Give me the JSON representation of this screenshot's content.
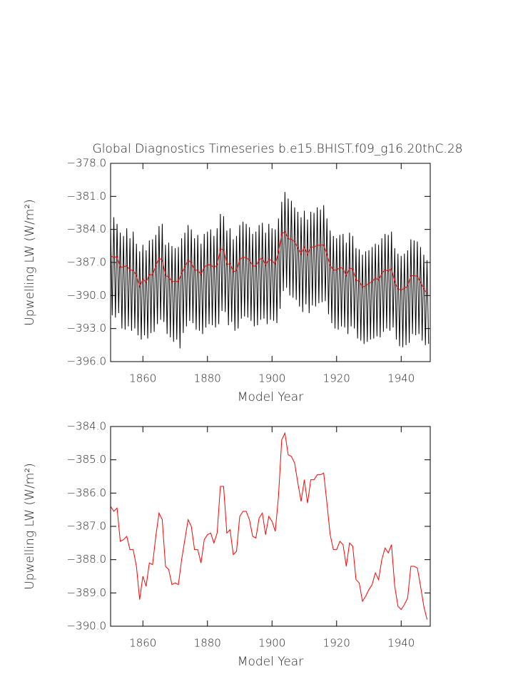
{
  "chart_data": [
    {
      "type": "line",
      "title": "Global Diagnostics Timeseries b.e15.BHIST.f09_g16.20thC.28",
      "x_label": "Model Year",
      "y_label": "Upwelling LW (W/m²)",
      "xlim": [
        1850,
        1949
      ],
      "xticks": [
        1860,
        1880,
        1900,
        1920,
        1940
      ],
      "ylim": [
        -396,
        -378
      ],
      "yticks": [
        {
          "value": -378,
          "label": "−378.0"
        },
        {
          "value": -381,
          "label": "−381.0"
        },
        {
          "value": -384,
          "label": "−384.0"
        },
        {
          "value": -387,
          "label": "−387.0"
        },
        {
          "value": -390,
          "label": "−390.0"
        },
        {
          "value": -393,
          "label": "−393.0"
        },
        {
          "value": -396,
          "label": "−396.0"
        }
      ],
      "series": [
        {
          "color": "#000000",
          "x": [
            1850,
            1850.5,
            1851,
            1851.5,
            1852,
            1852.5,
            1853,
            1853.5,
            1854,
            1854.5,
            1855,
            1855.5,
            1856,
            1856.5,
            1857,
            1857.5,
            1858,
            1858.5,
            1859,
            1859.5,
            1860,
            1860.5,
            1861,
            1861.5,
            1862,
            1862.5,
            1863,
            1863.5,
            1864,
            1864.5,
            1865,
            1865.5,
            1866,
            1866.5,
            1867,
            1867.5,
            1868,
            1868.5,
            1869,
            1869.5,
            1870,
            1870.5,
            1871,
            1871.5,
            1872,
            1872.5,
            1873,
            1873.5,
            1874,
            1874.5,
            1875,
            1875.5,
            1876,
            1876.5,
            1877,
            1877.5,
            1878,
            1878.5,
            1879,
            1879.5,
            1880,
            1880.5,
            1881,
            1881.5,
            1882,
            1882.5,
            1883,
            1883.5,
            1884,
            1884.5,
            1885,
            1885.5,
            1886,
            1886.5,
            1887,
            1887.5,
            1888,
            1888.5,
            1889,
            1889.5,
            1890,
            1890.5,
            1891,
            1891.5,
            1892,
            1892.5,
            1893,
            1893.5,
            1894,
            1894.5,
            1895,
            1895.5,
            1896,
            1896.5,
            1897,
            1897.5,
            1898,
            1898.5,
            1899,
            1899.5,
            1900,
            1900.5,
            1901,
            1901.5,
            1902,
            1902.5,
            1903,
            1903.5,
            1904,
            1904.5,
            1905,
            1905.5,
            1906,
            1906.5,
            1907,
            1907.5,
            1908,
            1908.5,
            1909,
            1909.5,
            1910,
            1910.5,
            1911,
            1911.5,
            1912,
            1912.5,
            1913,
            1913.5,
            1914,
            1914.5,
            1915,
            1915.5,
            1916,
            1916.5,
            1917,
            1917.5,
            1918,
            1918.5,
            1919,
            1919.5,
            1920,
            1920.5,
            1921,
            1921.5,
            1922,
            1922.5,
            1923,
            1923.5,
            1924,
            1924.5,
            1925,
            1925.5,
            1926,
            1926.5,
            1927,
            1927.5,
            1928,
            1928.5,
            1929,
            1929.5,
            1930,
            1930.5,
            1931,
            1931.5,
            1932,
            1932.5,
            1933,
            1933.5,
            1934,
            1934.5,
            1935,
            1935.5,
            1936,
            1936.5,
            1937,
            1937.5,
            1938,
            1938.5,
            1939,
            1939.5,
            1940,
            1940.5,
            1941,
            1941.5,
            1942,
            1942.5,
            1943,
            1943.5,
            1944,
            1944.5,
            1945,
            1945.5,
            1946,
            1946.5,
            1947,
            1947.5,
            1948,
            1948.5
          ],
          "values": [
            -383.6,
            -391.8,
            -382.9,
            -392.0,
            -383.5,
            -391.6,
            -384.3,
            -393.0,
            -384.6,
            -393.1,
            -383.9,
            -392.8,
            -384.8,
            -393.2,
            -384.2,
            -393.0,
            -385.3,
            -393.6,
            -386.0,
            -394.0,
            -385.4,
            -393.6,
            -385.9,
            -393.9,
            -385.0,
            -393.4,
            -384.9,
            -393.3,
            -384.5,
            -392.6,
            -383.7,
            -392.2,
            -383.5,
            -392.4,
            -385.4,
            -393.5,
            -385.2,
            -393.8,
            -385.5,
            -394.2,
            -385.7,
            -394.0,
            -385.6,
            -394.8,
            -384.8,
            -393.4,
            -384.3,
            -392.8,
            -383.6,
            -392.3,
            -384.0,
            -392.5,
            -384.8,
            -393.1,
            -384.5,
            -393.2,
            -385.3,
            -393.5,
            -384.4,
            -392.9,
            -384.2,
            -392.6,
            -384.0,
            -392.7,
            -384.6,
            -392.9,
            -383.9,
            -392.6,
            -382.6,
            -391.4,
            -382.8,
            -391.5,
            -384.1,
            -392.7,
            -383.9,
            -392.4,
            -384.9,
            -393.2,
            -384.6,
            -393.0,
            -383.6,
            -392.1,
            -383.3,
            -391.9,
            -383.5,
            -392.0,
            -383.8,
            -392.3,
            -384.4,
            -392.8,
            -384.2,
            -392.7,
            -383.6,
            -392.2,
            -383.4,
            -392.1,
            -384.3,
            -392.6,
            -383.5,
            -392.2,
            -383.9,
            -392.3,
            -384.0,
            -392.5,
            -383.0,
            -391.2,
            -381.5,
            -389.6,
            -380.6,
            -389.3,
            -381.2,
            -390.0,
            -381.4,
            -390.2,
            -382.0,
            -390.4,
            -382.4,
            -391.0,
            -382.9,
            -391.5,
            -382.3,
            -390.8,
            -383.1,
            -391.6,
            -382.4,
            -390.9,
            -382.5,
            -391.0,
            -382.0,
            -390.7,
            -382.2,
            -390.6,
            -381.8,
            -390.5,
            -383.0,
            -391.7,
            -384.1,
            -392.5,
            -384.6,
            -393.0,
            -384.8,
            -393.1,
            -384.5,
            -392.8,
            -384.4,
            -392.9,
            -385.2,
            -393.5,
            -384.3,
            -392.8,
            -384.6,
            -393.0,
            -385.7,
            -393.9,
            -385.8,
            -394.1,
            -386.3,
            -394.4,
            -386.0,
            -394.2,
            -385.9,
            -394.0,
            -385.6,
            -393.9,
            -385.3,
            -393.7,
            -385.4,
            -393.8,
            -384.8,
            -393.3,
            -384.4,
            -393.0,
            -384.5,
            -393.2,
            -384.2,
            -392.9,
            -385.7,
            -394.0,
            -386.2,
            -394.6,
            -386.4,
            -394.7,
            -386.2,
            -394.5,
            -385.9,
            -394.3,
            -384.9,
            -393.5,
            -385.0,
            -393.6,
            -385.1,
            -393.5,
            -385.6,
            -394.1,
            -386.3,
            -394.5,
            -386.8,
            -394.4
          ]
        },
        {
          "color": "#ff0000",
          "x": [
            1850,
            1851,
            1852,
            1853,
            1854,
            1855,
            1856,
            1857,
            1858,
            1859,
            1860,
            1861,
            1862,
            1863,
            1864,
            1865,
            1866,
            1867,
            1868,
            1869,
            1870,
            1871,
            1872,
            1873,
            1874,
            1875,
            1876,
            1877,
            1878,
            1879,
            1880,
            1881,
            1882,
            1883,
            1884,
            1885,
            1886,
            1887,
            1888,
            1889,
            1890,
            1891,
            1892,
            1893,
            1894,
            1895,
            1896,
            1897,
            1898,
            1899,
            1900,
            1901,
            1902,
            1903,
            1904,
            1905,
            1906,
            1907,
            1908,
            1909,
            1910,
            1911,
            1912,
            1913,
            1914,
            1915,
            1916,
            1917,
            1918,
            1919,
            1920,
            1921,
            1922,
            1923,
            1924,
            1925,
            1926,
            1927,
            1928,
            1929,
            1930,
            1931,
            1932,
            1933,
            1934,
            1935,
            1936,
            1937,
            1938,
            1939,
            1940,
            1941,
            1942,
            1943,
            1944,
            1945,
            1946,
            1947,
            1948
          ],
          "values": [
            -386.4,
            -386.55,
            -386.45,
            -387.45,
            -387.4,
            -387.3,
            -387.7,
            -387.7,
            -388.2,
            -389.2,
            -388.5,
            -388.8,
            -388.1,
            -388.15,
            -387.3,
            -386.6,
            -386.8,
            -388.2,
            -388.3,
            -388.75,
            -388.7,
            -388.75,
            -388.0,
            -387.4,
            -386.8,
            -387.0,
            -387.7,
            -387.7,
            -388.1,
            -387.4,
            -387.25,
            -387.2,
            -387.5,
            -387.2,
            -385.8,
            -385.8,
            -387.2,
            -387.1,
            -387.85,
            -387.75,
            -386.7,
            -386.55,
            -386.55,
            -386.8,
            -387.3,
            -387.35,
            -386.75,
            -386.6,
            -387.25,
            -386.7,
            -386.85,
            -387.15,
            -386.1,
            -384.4,
            -384.2,
            -384.85,
            -384.9,
            -385.1,
            -385.7,
            -386.25,
            -385.6,
            -386.3,
            -385.6,
            -385.6,
            -385.45,
            -385.45,
            -385.4,
            -386.3,
            -387.25,
            -387.7,
            -387.7,
            -387.45,
            -387.55,
            -388.2,
            -387.5,
            -387.6,
            -388.6,
            -388.7,
            -389.25,
            -389.1,
            -388.9,
            -388.75,
            -388.4,
            -388.6,
            -388.0,
            -387.65,
            -387.8,
            -387.55,
            -388.8,
            -389.4,
            -389.5,
            -389.35,
            -389.15,
            -388.2,
            -388.2,
            -388.25,
            -388.8,
            -389.4,
            -389.8
          ]
        }
      ]
    },
    {
      "type": "line",
      "x_label": "Model Year",
      "y_label": "Upwelling LW (W/m²)",
      "xlim": [
        1850,
        1949
      ],
      "xticks": [
        1860,
        1880,
        1900,
        1920,
        1940
      ],
      "ylim": [
        -390,
        -384
      ],
      "yticks": [
        {
          "value": -384,
          "label": "−384.0"
        },
        {
          "value": -385,
          "label": "−385.0"
        },
        {
          "value": -386,
          "label": "−386.0"
        },
        {
          "value": -387,
          "label": "−387.0"
        },
        {
          "value": -388,
          "label": "−388.0"
        },
        {
          "value": -389,
          "label": "−389.0"
        },
        {
          "value": -390,
          "label": "−390.0"
        }
      ],
      "series": [
        {
          "color": "#ff0000",
          "x": [
            1850,
            1851,
            1852,
            1853,
            1854,
            1855,
            1856,
            1857,
            1858,
            1859,
            1860,
            1861,
            1862,
            1863,
            1864,
            1865,
            1866,
            1867,
            1868,
            1869,
            1870,
            1871,
            1872,
            1873,
            1874,
            1875,
            1876,
            1877,
            1878,
            1879,
            1880,
            1881,
            1882,
            1883,
            1884,
            1885,
            1886,
            1887,
            1888,
            1889,
            1890,
            1891,
            1892,
            1893,
            1894,
            1895,
            1896,
            1897,
            1898,
            1899,
            1900,
            1901,
            1902,
            1903,
            1904,
            1905,
            1906,
            1907,
            1908,
            1909,
            1910,
            1911,
            1912,
            1913,
            1914,
            1915,
            1916,
            1917,
            1918,
            1919,
            1920,
            1921,
            1922,
            1923,
            1924,
            1925,
            1926,
            1927,
            1928,
            1929,
            1930,
            1931,
            1932,
            1933,
            1934,
            1935,
            1936,
            1937,
            1938,
            1939,
            1940,
            1941,
            1942,
            1943,
            1944,
            1945,
            1946,
            1947,
            1948
          ],
          "values": [
            -386.4,
            -386.55,
            -386.45,
            -387.45,
            -387.4,
            -387.3,
            -387.7,
            -387.7,
            -388.2,
            -389.2,
            -388.5,
            -388.8,
            -388.1,
            -388.15,
            -387.3,
            -386.6,
            -386.8,
            -388.2,
            -388.3,
            -388.75,
            -388.7,
            -388.75,
            -388.0,
            -387.4,
            -386.8,
            -387.0,
            -387.7,
            -387.7,
            -388.1,
            -387.4,
            -387.25,
            -387.2,
            -387.5,
            -387.2,
            -385.8,
            -385.8,
            -387.2,
            -387.1,
            -387.85,
            -387.75,
            -386.7,
            -386.55,
            -386.55,
            -386.8,
            -387.3,
            -387.35,
            -386.75,
            -386.6,
            -387.25,
            -386.7,
            -386.85,
            -387.15,
            -386.1,
            -384.4,
            -384.2,
            -384.85,
            -384.9,
            -385.1,
            -385.7,
            -386.25,
            -385.6,
            -386.3,
            -385.6,
            -385.6,
            -385.45,
            -385.45,
            -385.4,
            -386.3,
            -387.25,
            -387.7,
            -387.7,
            -387.45,
            -387.55,
            -388.2,
            -387.5,
            -387.6,
            -388.6,
            -388.7,
            -389.25,
            -389.1,
            -388.9,
            -388.75,
            -388.4,
            -388.6,
            -388.0,
            -387.65,
            -387.8,
            -387.55,
            -388.8,
            -389.4,
            -389.5,
            -389.35,
            -389.15,
            -388.2,
            -388.2,
            -388.25,
            -388.8,
            -389.4,
            -389.8
          ]
        }
      ]
    }
  ]
}
